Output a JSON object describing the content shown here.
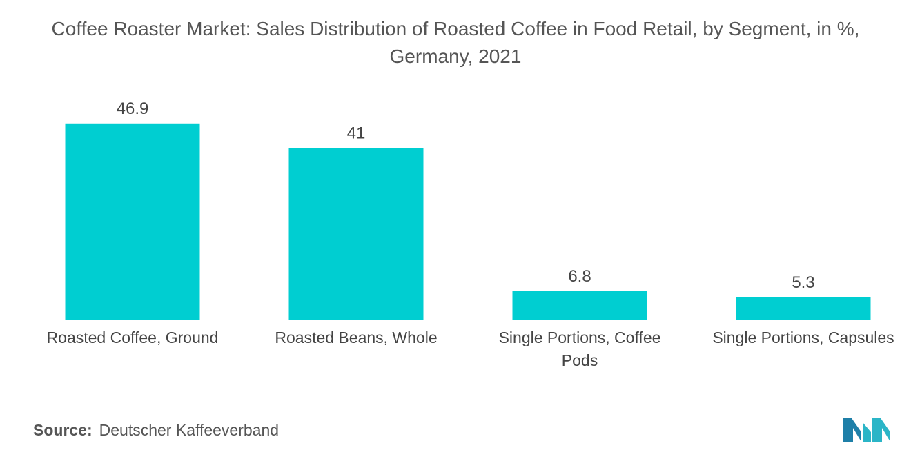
{
  "chart_data": {
    "type": "bar",
    "title": "Coffee Roaster Market: Sales Distribution of Roasted Coffee in Food Retail, by Segment, in %, Germany, 2021",
    "categories": [
      [
        "Roasted Coffee, Ground"
      ],
      [
        "Roasted Beans, Whole"
      ],
      [
        "Single Portions, Coffee",
        "Pods"
      ],
      [
        "Single Portions, Capsules"
      ]
    ],
    "values": [
      46.9,
      41,
      6.8,
      5.3
    ],
    "value_labels": [
      "46.9",
      "41",
      "6.8",
      "5.3"
    ],
    "ylim": [
      0,
      50
    ],
    "xlabel": "",
    "ylabel": "",
    "grid": false,
    "legend": "none",
    "bar_color": "#00CED1"
  },
  "source": {
    "label": "Source:",
    "text": "Deutscher Kaffeeverband"
  },
  "brand": {
    "logo_icon": "mordor-intelligence-logo-icon",
    "colors": [
      "#1E7FA8",
      "#2BB5C7"
    ]
  }
}
